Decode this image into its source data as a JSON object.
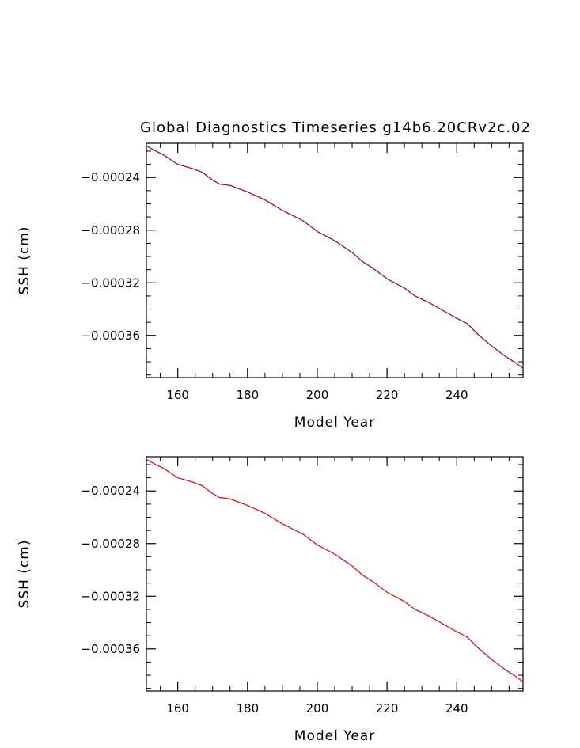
{
  "figure_title": "Global Diagnostics Timeseries g14b6.20CRv2c.02",
  "chart_data": [
    {
      "type": "line",
      "title": "Global Diagnostics Timeseries g14b6.20CRv2c.02",
      "xlabel": "Model Year",
      "ylabel": "SSH (cm)",
      "xlim": [
        151,
        259
      ],
      "ylim": [
        -0.000392,
        -0.000214
      ],
      "xticks": [
        160,
        180,
        200,
        220,
        240
      ],
      "xtick_labels": [
        "160",
        "180",
        "200",
        "220",
        "240"
      ],
      "yticks": [
        -0.00024,
        -0.00028,
        -0.00032,
        -0.00036
      ],
      "ytick_labels": [
        "−0.00024",
        "−0.00028",
        "−0.00032",
        "−0.00036"
      ],
      "grid": false,
      "series": [
        {
          "color": "#a0141e",
          "x": [
            151,
            153,
            156,
            160,
            164,
            167,
            170,
            172,
            175,
            180,
            185,
            190,
            193,
            196,
            200,
            205,
            210,
            213,
            216,
            220,
            225,
            228,
            232,
            236,
            240,
            243,
            246,
            250,
            254,
            257,
            259
          ],
          "y": [
            -0.000216,
            -0.000219,
            -0.000223,
            -0.00023,
            -0.000233,
            -0.000236,
            -0.000242,
            -0.000245,
            -0.000246,
            -0.000251,
            -0.000257,
            -0.000265,
            -0.000269,
            -0.000273,
            -0.000281,
            -0.000288,
            -0.000297,
            -0.000304,
            -0.000309,
            -0.000317,
            -0.000324,
            -0.00033,
            -0.000335,
            -0.000341,
            -0.000347,
            -0.000351,
            -0.000359,
            -0.000368,
            -0.000376,
            -0.000381,
            -0.000385
          ]
        }
      ]
    },
    {
      "type": "line",
      "title": "",
      "xlabel": "Model Year",
      "ylabel": "SSH (cm)",
      "xlim": [
        151,
        259
      ],
      "ylim": [
        -0.000392,
        -0.000214
      ],
      "xticks": [
        160,
        180,
        200,
        220,
        240
      ],
      "xtick_labels": [
        "160",
        "180",
        "200",
        "220",
        "240"
      ],
      "yticks": [
        -0.00024,
        -0.00028,
        -0.00032,
        -0.00036
      ],
      "ytick_labels": [
        "−0.00024",
        "−0.00028",
        "−0.00032",
        "−0.00036"
      ],
      "grid": false,
      "series": [
        {
          "color": "#ee1111",
          "x": [
            151,
            153,
            156,
            160,
            164,
            167,
            170,
            172,
            175,
            180,
            185,
            190,
            193,
            196,
            200,
            205,
            210,
            213,
            216,
            220,
            225,
            228,
            232,
            236,
            240,
            243,
            246,
            250,
            254,
            257,
            259
          ],
          "y": [
            -0.000216,
            -0.000219,
            -0.000223,
            -0.00023,
            -0.000233,
            -0.000236,
            -0.000242,
            -0.000245,
            -0.000246,
            -0.000251,
            -0.000257,
            -0.000265,
            -0.000269,
            -0.000273,
            -0.000281,
            -0.000288,
            -0.000297,
            -0.000304,
            -0.000309,
            -0.000317,
            -0.000324,
            -0.00033,
            -0.000335,
            -0.000341,
            -0.000347,
            -0.000351,
            -0.000359,
            -0.000368,
            -0.000376,
            -0.000381,
            -0.000385
          ]
        }
      ]
    }
  ]
}
